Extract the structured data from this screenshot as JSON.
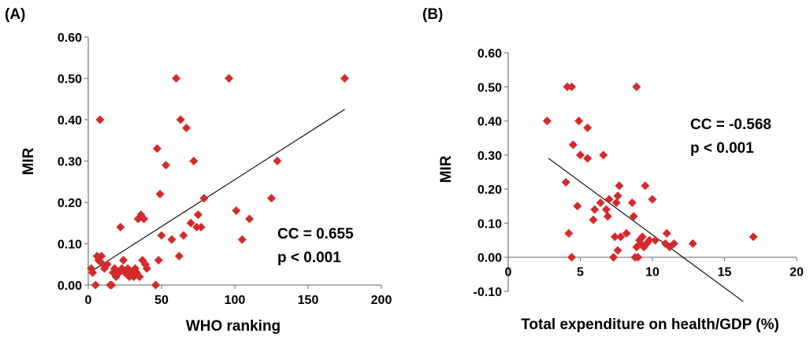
{
  "chart_data": [
    {
      "type": "scatter",
      "panel_label": "(A)",
      "xlabel": "WHO ranking",
      "ylabel": "MIR",
      "xlim": [
        0,
        200
      ],
      "ylim": [
        0,
        0.6
      ],
      "x_ticks": [
        "0",
        "50",
        "100",
        "150",
        "200"
      ],
      "y_ticks": [
        "0.00",
        "0.10",
        "0.20",
        "0.30",
        "0.40",
        "0.50",
        "0.60"
      ],
      "annotation_cc": "CC = 0.655",
      "annotation_p": "p < 0.001",
      "marker_color": "#d42a2a",
      "trendline": {
        "x": [
          3,
          175
        ],
        "y": [
          0.035,
          0.425
        ]
      },
      "points": [
        [
          2,
          0.04
        ],
        [
          3,
          0.03
        ],
        [
          5,
          0.0
        ],
        [
          6,
          0.07
        ],
        [
          7,
          0.06
        ],
        [
          8,
          0.4
        ],
        [
          9,
          0.07
        ],
        [
          10,
          0.05
        ],
        [
          11,
          0.04
        ],
        [
          13,
          0.05
        ],
        [
          15,
          0.0
        ],
        [
          16,
          0.0
        ],
        [
          17,
          0.03
        ],
        [
          18,
          0.04
        ],
        [
          19,
          0.02
        ],
        [
          20,
          0.03
        ],
        [
          21,
          0.03
        ],
        [
          22,
          0.14
        ],
        [
          23,
          0.04
        ],
        [
          24,
          0.06
        ],
        [
          25,
          0.03
        ],
        [
          27,
          0.04
        ],
        [
          28,
          0.02
        ],
        [
          30,
          0.03
        ],
        [
          31,
          0.02
        ],
        [
          32,
          0.04
        ],
        [
          33,
          0.03
        ],
        [
          34,
          0.16
        ],
        [
          35,
          0.02
        ],
        [
          36,
          0.17
        ],
        [
          37,
          0.06
        ],
        [
          38,
          0.16
        ],
        [
          39,
          0.05
        ],
        [
          40,
          0.04
        ],
        [
          46,
          0.0
        ],
        [
          47,
          0.33
        ],
        [
          48,
          0.06
        ],
        [
          49,
          0.22
        ],
        [
          50,
          0.12
        ],
        [
          53,
          0.29
        ],
        [
          57,
          0.11
        ],
        [
          60,
          0.5
        ],
        [
          62,
          0.07
        ],
        [
          63,
          0.4
        ],
        [
          65,
          0.12
        ],
        [
          67,
          0.38
        ],
        [
          70,
          0.15
        ],
        [
          72,
          0.3
        ],
        [
          74,
          0.14
        ],
        [
          75,
          0.17
        ],
        [
          77,
          0.14
        ],
        [
          79,
          0.21
        ],
        [
          96,
          0.5
        ],
        [
          101,
          0.18
        ],
        [
          105,
          0.11
        ],
        [
          110,
          0.16
        ],
        [
          125,
          0.21
        ],
        [
          129,
          0.3
        ],
        [
          175,
          0.5
        ]
      ]
    },
    {
      "type": "scatter",
      "panel_label": "(B)",
      "xlabel": "Total expenditure on health/GDP (%)",
      "ylabel": "MIR",
      "xlim": [
        0,
        20
      ],
      "ylim": [
        -0.1,
        0.6
      ],
      "x_ticks": [
        "0",
        "5",
        "10",
        "15",
        "20"
      ],
      "y_ticks": [
        "-0.10",
        "0.00",
        "0.10",
        "0.20",
        "0.30",
        "0.40",
        "0.50",
        "0.60"
      ],
      "annotation_cc": "CC = -0.568",
      "annotation_p": "p < 0.001",
      "marker_color": "#d42a2a",
      "trendline": {
        "x": [
          2.8,
          16.3
        ],
        "y": [
          0.29,
          -0.13
        ]
      },
      "points": [
        [
          2.7,
          0.4
        ],
        [
          4.0,
          0.22
        ],
        [
          4.1,
          0.5
        ],
        [
          4.2,
          0.07
        ],
        [
          4.4,
          0.5
        ],
        [
          4.4,
          0.0
        ],
        [
          4.5,
          0.33
        ],
        [
          4.8,
          0.15
        ],
        [
          4.9,
          0.4
        ],
        [
          5.0,
          0.3
        ],
        [
          5.5,
          0.38
        ],
        [
          5.5,
          0.29
        ],
        [
          5.9,
          0.11
        ],
        [
          6.0,
          0.14
        ],
        [
          6.4,
          0.16
        ],
        [
          6.6,
          0.3
        ],
        [
          6.8,
          0.14
        ],
        [
          6.9,
          0.12
        ],
        [
          7.0,
          0.17
        ],
        [
          7.3,
          0.0
        ],
        [
          7.4,
          0.06
        ],
        [
          7.5,
          0.16
        ],
        [
          7.6,
          0.18
        ],
        [
          7.6,
          0.02
        ],
        [
          7.7,
          0.21
        ],
        [
          7.8,
          0.06
        ],
        [
          8.2,
          0.07
        ],
        [
          8.6,
          0.16
        ],
        [
          8.7,
          0.12
        ],
        [
          8.8,
          0.0
        ],
        [
          8.9,
          0.5
        ],
        [
          8.9,
          0.03
        ],
        [
          9.0,
          0.0
        ],
        [
          9.1,
          0.05
        ],
        [
          9.2,
          0.04
        ],
        [
          9.3,
          0.06
        ],
        [
          9.4,
          0.03
        ],
        [
          9.5,
          0.21
        ],
        [
          9.6,
          0.04
        ],
        [
          9.8,
          0.05
        ],
        [
          10.0,
          0.17
        ],
        [
          10.2,
          0.05
        ],
        [
          10.9,
          0.04
        ],
        [
          11.0,
          0.07
        ],
        [
          11.2,
          0.03
        ],
        [
          11.5,
          0.04
        ],
        [
          12.8,
          0.04
        ],
        [
          17.0,
          0.06
        ]
      ]
    }
  ]
}
